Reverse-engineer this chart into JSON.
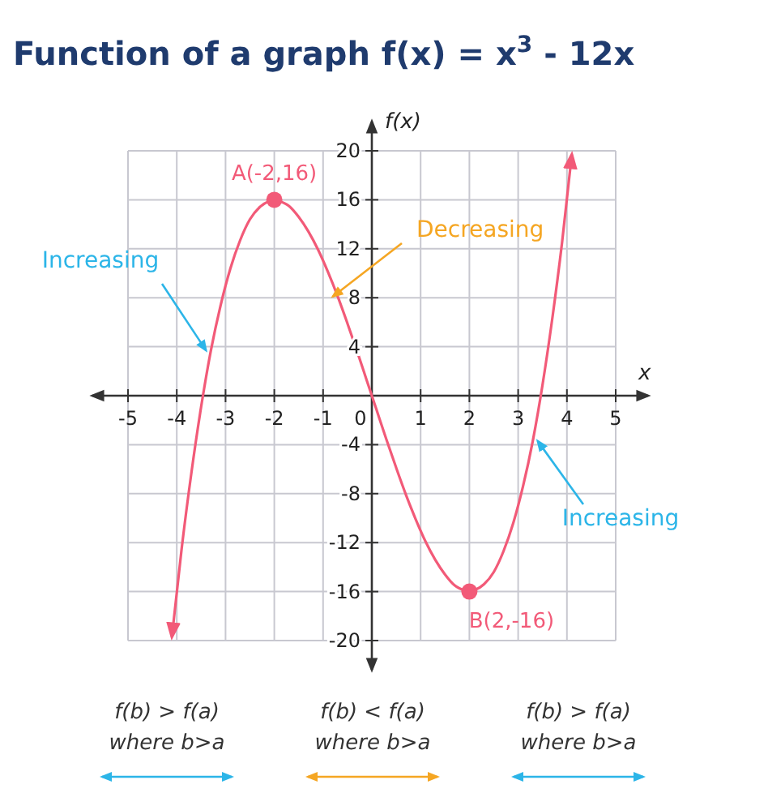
{
  "chart_data": {
    "type": "line",
    "title": "Function of a graph f(x) = x$^{3}$ - 12x",
    "xlabel": "x",
    "ylabel": "f(x)",
    "xlim": [
      -5,
      5
    ],
    "ylim": [
      -20,
      20
    ],
    "xticks": [
      -5,
      -4,
      -3,
      -2,
      -1,
      {
        "value": 0,
        "label": "0"
      },
      1,
      2,
      3,
      4,
      5
    ],
    "yticks": [
      -20,
      -16,
      -12,
      -8,
      -4,
      {
        "value": 0,
        "label": null
      },
      4,
      8,
      12,
      16,
      20
    ],
    "grid": true,
    "series": [
      {
        "color": "#f25a78",
        "x": [
          -4.1,
          -3.9,
          -3.7,
          -3.5,
          -3.3,
          -3.1,
          -2.9,
          -2.7,
          -2.5,
          -2.3,
          -2.1,
          -2,
          -1.9,
          -1.7,
          -1.5,
          -1.3,
          -1.1,
          -0.9,
          -0.7,
          -0.5,
          -0.3,
          -0.1,
          0,
          0.1,
          0.3,
          0.5,
          0.7,
          0.9,
          1.1,
          1.3,
          1.5,
          1.7,
          1.9,
          2,
          2.1,
          2.3,
          2.5,
          2.7,
          2.9,
          3.1,
          3.3,
          3.5,
          3.7,
          3.9,
          4.1
        ],
        "values": [
          -19.7,
          -12.5,
          -6.3,
          -0.9,
          3.7,
          7.4,
          10.4,
          12.7,
          14.4,
          15.4,
          15.9,
          16,
          15.9,
          15.5,
          14.6,
          13.4,
          11.9,
          10.1,
          8.1,
          5.9,
          3.6,
          1.2,
          0,
          -1.2,
          -3.6,
          -5.9,
          -8.1,
          -10.1,
          -11.9,
          -13.4,
          -14.6,
          -15.5,
          -15.9,
          -16,
          -15.9,
          -15.4,
          -14.4,
          -12.7,
          -10.4,
          -7.4,
          -3.7,
          0.9,
          6.3,
          12.5,
          19.7
        ]
      },
      {
        "type": "scatter",
        "color": "#f25a78",
        "marker": "circle",
        "x": [
          -2,
          2
        ],
        "values": [
          16,
          -16
        ]
      }
    ],
    "annotations": [
      {
        "text": "A(-2,16)",
        "x": -2,
        "y": 16
      },
      {
        "text": "B(2,-16)",
        "x": 2,
        "y": -16
      },
      {
        "text": "Increasing",
        "x": -3.3,
        "y": 3.7
      },
      {
        "text": "Decreasing",
        "x": -0.7,
        "y": 8.1
      },
      {
        "text": "Increasing",
        "x": 3.3,
        "y": -3.7
      },
      "f(b) > f(a)\nwhere b>a",
      "f(b) < f(a)\nwhere b>a",
      "f(b) > f(a)\nwhere b>a"
    ]
  }
}
